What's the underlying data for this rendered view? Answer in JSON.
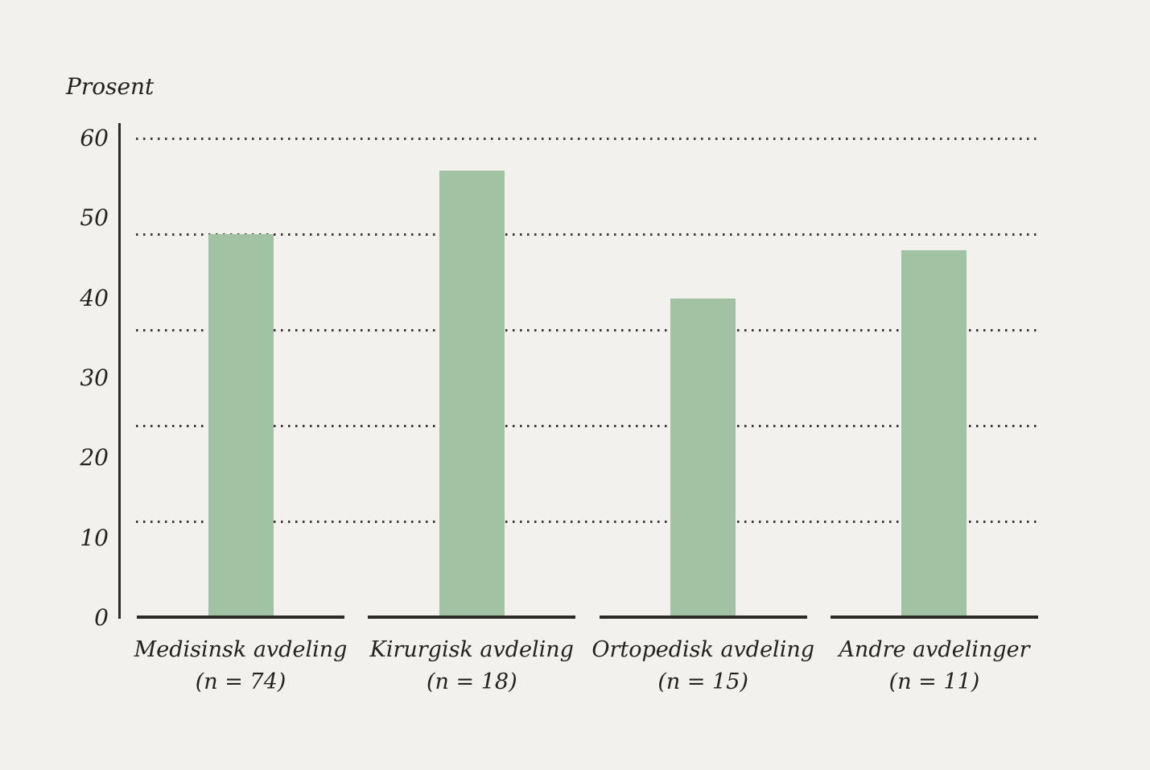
{
  "figure": {
    "background_color": "#f2f1ee"
  },
  "chart_data": {
    "type": "bar",
    "title": "",
    "ylabel": "Prosent",
    "xlabel": "",
    "categories": [
      "Medisinsk avdeling",
      "Kirurgisk avdeling",
      "Ortopedisk avdeling",
      "Andre avdelinger"
    ],
    "category_n_labels": [
      "(n = 74)",
      "(n = 18)",
      "(n = 15)",
      "(n = 11)"
    ],
    "values": [
      48,
      56,
      40,
      46
    ],
    "ylim": [
      0,
      60
    ],
    "yticks": [
      0,
      10,
      20,
      30,
      40,
      50,
      60
    ],
    "ytick_labels": [
      "0",
      "10",
      "20",
      "30",
      "40",
      "50",
      "60"
    ],
    "gridline_values": [
      12,
      24,
      36,
      48,
      60
    ],
    "grid_style": "dotted",
    "legend_position": "none",
    "colors": {
      "bar": "#a2c2a4",
      "axis": "#2b2a27",
      "grid_dot": "#3a3937",
      "text": "#22211f",
      "background": "#f2f1ee"
    }
  }
}
